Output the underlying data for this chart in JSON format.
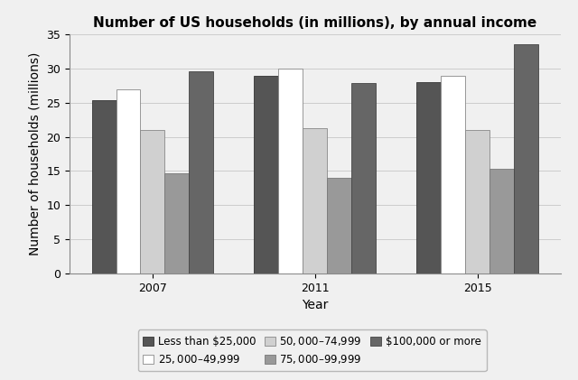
{
  "title": "Number of US households (in millions), by annual income",
  "xlabel": "Year",
  "ylabel": "Number of households (millions)",
  "years": [
    "2007",
    "2011",
    "2015"
  ],
  "categories": [
    "Less than $25,000",
    "$25,000–$49,999",
    "$50,000–$74,999",
    "$75,000–$99,999",
    "$100,000 or more"
  ],
  "values": {
    "Less than $25,000": [
      25.3,
      28.9,
      28.0
    ],
    "$25,000–$49,999": [
      27.0,
      30.0,
      28.9
    ],
    "$50,000–$74,999": [
      21.0,
      21.2,
      21.0
    ],
    "$75,000–$99,999": [
      14.7,
      14.0,
      15.3
    ],
    "$100,000 or more": [
      29.6,
      27.9,
      33.5
    ]
  },
  "colors": [
    "#555555",
    "#ffffff",
    "#d0d0d0",
    "#999999",
    "#666666"
  ],
  "bar_edge_colors": [
    "#333333",
    "#888888",
    "#888888",
    "#777777",
    "#444444"
  ],
  "ylim": [
    0,
    35
  ],
  "yticks": [
    0,
    5,
    10,
    15,
    20,
    25,
    30,
    35
  ],
  "background_color": "#f0f0f0",
  "title_fontsize": 11,
  "axis_label_fontsize": 10,
  "tick_fontsize": 9,
  "legend_fontsize": 8.5,
  "group_width": 0.75
}
